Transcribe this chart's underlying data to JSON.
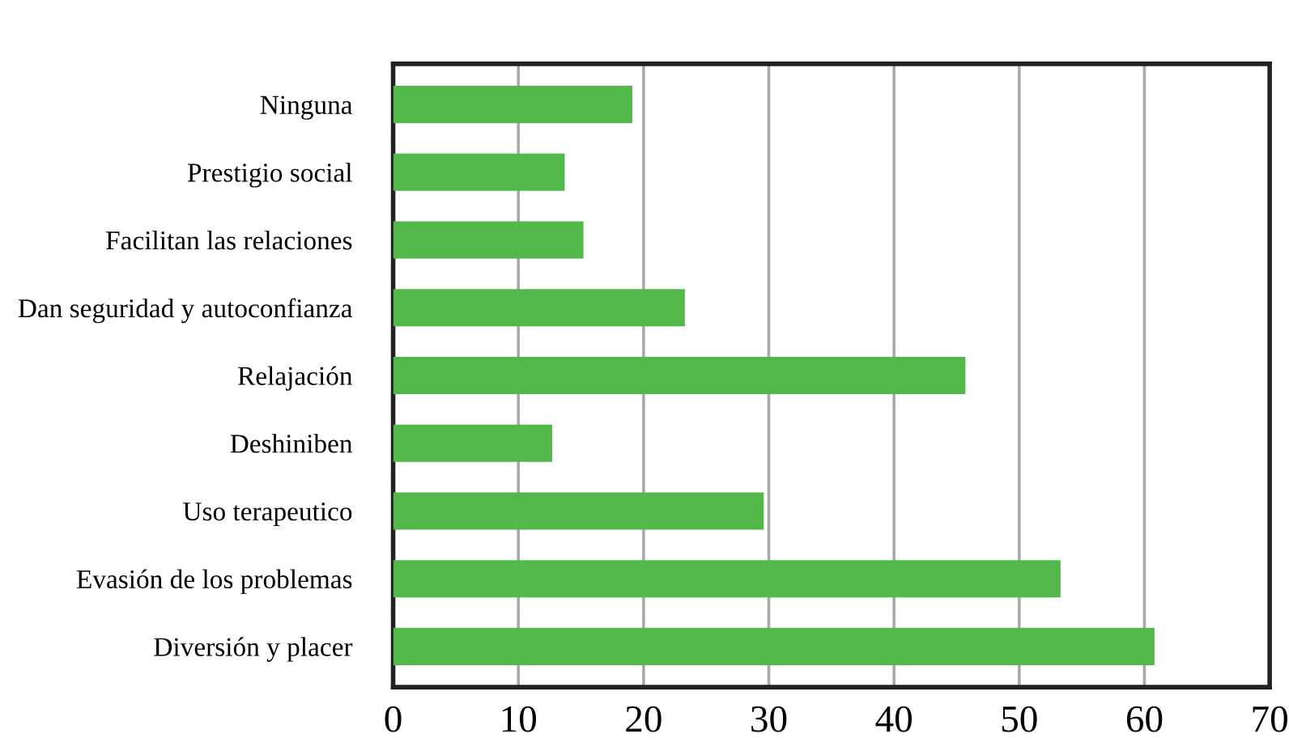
{
  "chart_data": {
    "type": "bar",
    "orientation": "horizontal",
    "categories": [
      "Ninguna",
      "Prestigio social",
      "Facilitan las relaciones",
      "Dan seguridad y autoconfianza",
      "Relajación",
      "Deshiniben",
      "Uso terapeutico",
      "Evasión de los problemas",
      "Diversión y placer"
    ],
    "values": [
      19.1,
      13.7,
      15.2,
      23.3,
      45.7,
      12.7,
      29.6,
      53.3,
      60.8
    ],
    "color": "#52b84a",
    "xlim": [
      0,
      70
    ],
    "xticks": [
      0,
      10,
      20,
      30,
      40,
      50,
      60,
      70
    ],
    "grid": "x",
    "legend": false
  }
}
